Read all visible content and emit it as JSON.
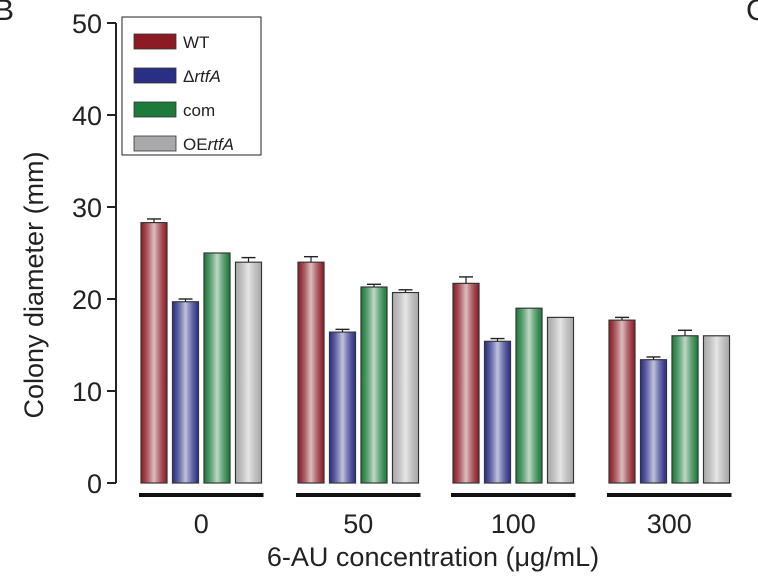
{
  "panel_labels": {
    "left": "B",
    "right": "C"
  },
  "chart_data": {
    "type": "bar",
    "title": "",
    "xlabel": "6-AU concentration (μg/mL)",
    "ylabel": "Colony diameter (mm)",
    "categories": [
      "0",
      "50",
      "100",
      "300"
    ],
    "ylim": [
      0,
      50
    ],
    "yticks": [
      0,
      10,
      20,
      30,
      40,
      50
    ],
    "grid": false,
    "legend": "top-left",
    "series": [
      {
        "name": "WT",
        "name_prefix": "",
        "name_italic": "",
        "color": "#8b1c24",
        "values": [
          28.3,
          24.0,
          21.7,
          17.7
        ],
        "errors": [
          0.4,
          0.6,
          0.7,
          0.3
        ]
      },
      {
        "name": "ΔrtfA",
        "name_prefix": "Δ",
        "name_italic": "rtfA",
        "color": "#2a2f86",
        "values": [
          19.7,
          16.4,
          15.4,
          13.4
        ],
        "errors": [
          0.3,
          0.3,
          0.3,
          0.3
        ]
      },
      {
        "name": "com",
        "name_prefix": "com",
        "name_italic": "",
        "color": "#1e7a3a",
        "values": [
          25.0,
          21.3,
          19.0,
          16.0
        ],
        "errors": [
          0.0,
          0.3,
          0.0,
          0.6
        ]
      },
      {
        "name": "OErtfA",
        "name_prefix": "OE",
        "name_italic": "rtfA",
        "color": "#a9a9ab",
        "values": [
          24.0,
          20.7,
          18.0,
          16.0
        ],
        "errors": [
          0.5,
          0.3,
          0.0,
          0.0
        ]
      }
    ]
  }
}
